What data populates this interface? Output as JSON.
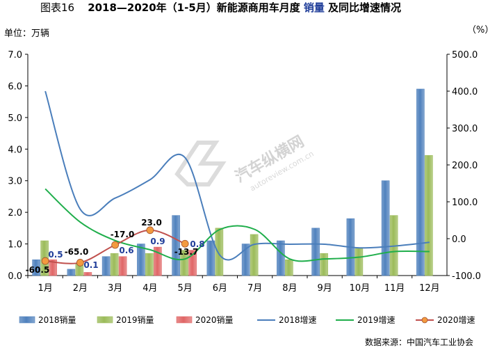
{
  "title": {
    "prefix": "图表16",
    "main_before": "2018—2020年（1-5月）新能源商用车月度",
    "main_highlight": "销量",
    "main_after": "及同比增速情况"
  },
  "left_unit": "单位：万辆",
  "right_unit": "（%）",
  "source": "数据来源：中国汽车工业协会",
  "watermark": {
    "text": "汽车纵横网",
    "url": "autoreview.com.cn"
  },
  "colors": {
    "s2018": "#4f81bd",
    "s2019": "#9bbb59",
    "s2020": "#e06666",
    "l2018": "#4a7ebb",
    "l2019": "#1fae4b",
    "l2020": "#c0504d",
    "marker2020": "#f39a3f"
  },
  "chart_data": {
    "type": "bar",
    "categories": [
      "1月",
      "2月",
      "3月",
      "4月",
      "5月",
      "6月",
      "7月",
      "8月",
      "9月",
      "10月",
      "11月",
      "12月"
    ],
    "y_left": {
      "ticks": [
        "0.0",
        "1.0",
        "2.0",
        "3.0",
        "4.0",
        "5.0",
        "6.0",
        "7.0"
      ],
      "range": [
        0,
        7
      ]
    },
    "y_right": {
      "ticks": [
        "-100.0",
        "0.0",
        "100.0",
        "200.0",
        "300.0",
        "400.0",
        "500.0"
      ],
      "range": [
        -100,
        500
      ]
    },
    "bars": [
      {
        "name": "2018销量",
        "values": [
          0.5,
          0.2,
          0.6,
          1.0,
          1.9,
          1.1,
          1.0,
          1.1,
          1.5,
          1.8,
          3.0,
          5.9
        ]
      },
      {
        "name": "2019销量",
        "values": [
          1.1,
          0.4,
          0.7,
          0.7,
          0.8,
          1.5,
          1.3,
          0.5,
          0.7,
          0.85,
          1.9,
          3.8
        ]
      },
      {
        "name": "2020销量",
        "values": [
          0.5,
          0.1,
          0.6,
          0.9,
          0.8
        ],
        "labels": [
          "0.5",
          "0.1",
          "0.6",
          "0.9",
          "0.8"
        ]
      }
    ],
    "lines": [
      {
        "name": "2018增速",
        "values": [
          400,
          80,
          110,
          160,
          220,
          -45,
          -15,
          -15,
          -15,
          -25,
          -20,
          -10
        ]
      },
      {
        "name": "2019增速",
        "values": [
          135,
          45,
          -5,
          -30,
          -55,
          25,
          25,
          -55,
          -55,
          -50,
          -35,
          -35
        ]
      },
      {
        "name": "2020增速",
        "values": [
          -60.5,
          -65.0,
          -17.0,
          23.0,
          -13.7
        ],
        "labels": [
          "-60.5",
          "-65.0",
          "-17.0",
          "23.0",
          "-13.7"
        ]
      }
    ],
    "legend": [
      "2018销量",
      "2019销量",
      "2020销量",
      "2018增速",
      "2019增速",
      "2020增速"
    ]
  }
}
